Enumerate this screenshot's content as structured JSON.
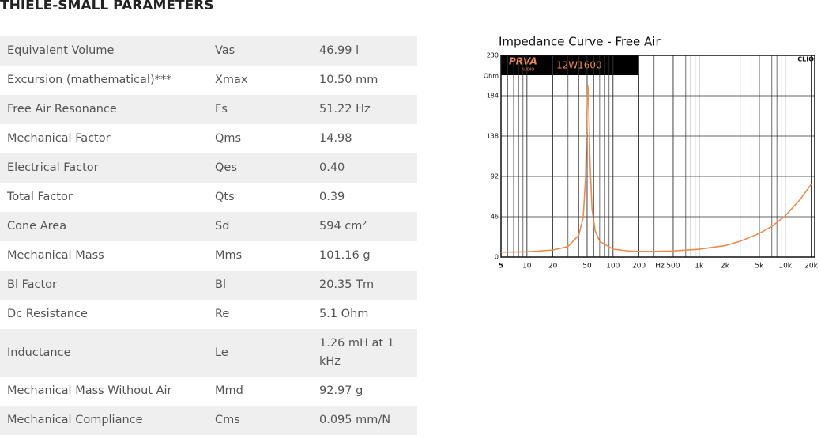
{
  "header": {
    "title": "THIELE-SMALL PARAMETERS"
  },
  "table": {
    "rows": [
      [
        "Equivalent Volume",
        "Vas",
        "46.99 l"
      ],
      [
        "Excursion (mathematical)***",
        "Xmax",
        "10.50  mm"
      ],
      [
        "Free Air Resonance",
        "Fs",
        "51.22 Hz"
      ],
      [
        "Mechanical Factor",
        "Qms",
        "14.98"
      ],
      [
        "Electrical Factor",
        "Qes",
        "0.40"
      ],
      [
        "Total Factor",
        "Qts",
        "0.39"
      ],
      [
        "Cone Area",
        "Sd",
        "594 cm²"
      ],
      [
        "Mechanical Mass",
        "Mms",
        "101.16 g"
      ],
      [
        "Bl Factor",
        "Bl",
        "20.35 Tm"
      ],
      [
        "Dc Resistance",
        "Re",
        "5.1 Ohm"
      ],
      [
        "Inductance",
        "Le",
        "1.26 mH at 1 kHz"
      ],
      [
        "Mechanical Mass Without Air",
        "Mmd",
        "92.97 g"
      ],
      [
        "Mechanical Compliance",
        "Cms",
        "0.095 mm/N"
      ]
    ]
  },
  "chart_data": {
    "type": "line",
    "title": "Impedance Curve - Free Air",
    "brand": "PRVA",
    "brand_sub": "AUDIO",
    "model": "12W1600",
    "software": "CLIO",
    "y_unit": "Ohm",
    "x_unit": "Hz",
    "xscale": "log",
    "grid": true,
    "minor_xgrid": true,
    "color": "#f08a4b",
    "x": [
      5,
      10,
      20,
      30,
      40,
      45,
      48,
      50,
      51,
      52,
      54,
      57,
      62,
      70,
      100,
      150,
      200,
      300,
      500,
      1000,
      2000,
      3000,
      5000,
      7000,
      10000,
      15000,
      20000
    ],
    "values": [
      5.5,
      6,
      8,
      12,
      25,
      45,
      90,
      170,
      195,
      180,
      110,
      55,
      30,
      18,
      9,
      7,
      6.5,
      6.5,
      7,
      9,
      13,
      18,
      27,
      35,
      47,
      66,
      83
    ],
    "xlim": [
      5,
      22000
    ],
    "ylim": [
      0,
      230
    ],
    "xticks": [
      5,
      10,
      20,
      50,
      100,
      200,
      500,
      {
        "value": 1000,
        "label": "1k"
      },
      {
        "value": 2000,
        "label": "2k"
      },
      {
        "value": 5000,
        "label": "5k"
      },
      {
        "value": 10000,
        "label": "10k"
      },
      {
        "value": 20000,
        "label": "20k"
      }
    ],
    "yticks": [
      0,
      46,
      92,
      138,
      184,
      230
    ]
  }
}
